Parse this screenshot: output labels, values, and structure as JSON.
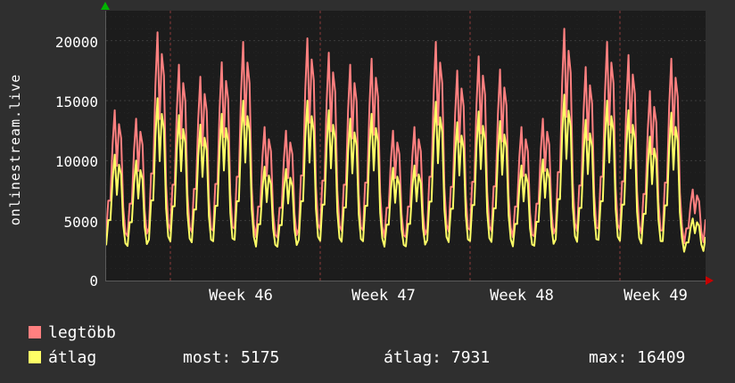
{
  "watermark": {
    "title": "onlinestream.live"
  },
  "axes": {
    "y_ticks": [
      "20000",
      "15000",
      "10000",
      "5000",
      "0"
    ],
    "x_ticks": [
      "Week 46",
      "Week 47",
      "Week 48",
      "Week 49"
    ]
  },
  "legend": {
    "items": [
      {
        "label": "legtöbb",
        "color": "#ff8080"
      },
      {
        "label": "átlag",
        "color": "#ffff66"
      }
    ]
  },
  "stats": {
    "most": "most: 5175",
    "atlag": "átlag: 7931",
    "max": "max: 16409"
  },
  "chart_data": {
    "type": "line",
    "title": "onlinestream.live",
    "x_tick_labels": [
      "Week 46",
      "Week 47",
      "Week 48",
      "Week 49"
    ],
    "y_ticks": [
      0,
      5000,
      10000,
      15000,
      20000
    ],
    "ylim": [
      0,
      22500
    ],
    "grid": true,
    "legend_position": "bottom-left",
    "week_line_days": [
      3,
      10,
      17,
      24
    ],
    "day_profile": [
      0.1,
      0.35,
      0.35,
      0.75,
      1.0,
      0.6,
      0.9,
      0.8,
      0.3,
      0.12
    ],
    "series": [
      {
        "name": "legtöbb",
        "color": "#ff8080",
        "base": 2600,
        "day_peaks": [
          14200,
          13500,
          20700,
          18000,
          17000,
          18200,
          19900,
          12800,
          12500,
          20200,
          19000,
          18000,
          18500,
          12500,
          12800,
          19900,
          17500,
          18700,
          17600,
          12800,
          13500,
          21000,
          17800,
          19900,
          18800,
          15800,
          18500,
          7600
        ]
      },
      {
        "name": "átlag",
        "color": "#ffff66",
        "base": 2100,
        "day_peaks": [
          10500,
          10000,
          15200,
          13800,
          13000,
          13900,
          15000,
          9500,
          9300,
          15000,
          14200,
          13500,
          13900,
          9400,
          9600,
          14900,
          13200,
          14100,
          13300,
          9600,
          10100,
          15500,
          13400,
          15000,
          14200,
          12000,
          14000,
          5175
        ]
      }
    ],
    "stats": {
      "most": 5175,
      "atlag": 7931,
      "max": 16409
    }
  }
}
